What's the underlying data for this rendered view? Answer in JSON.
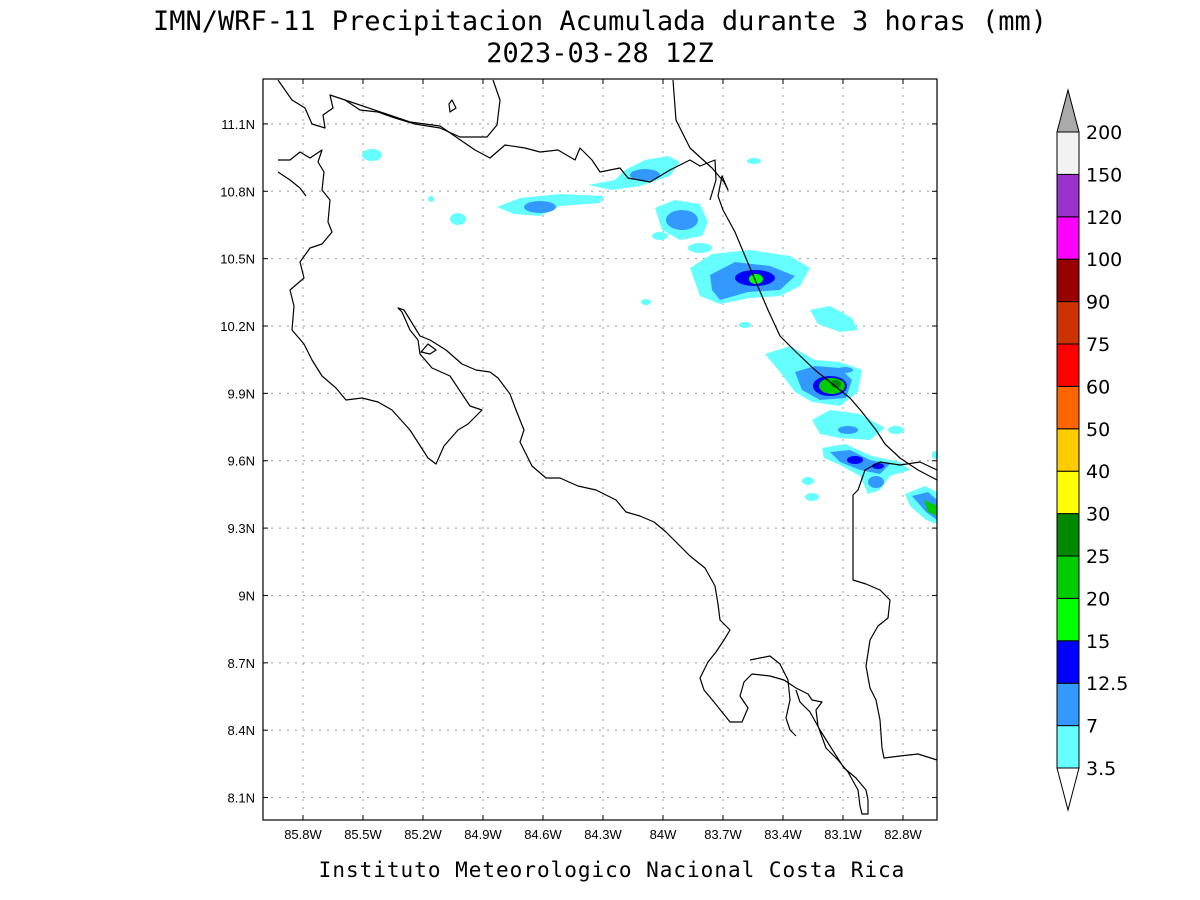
{
  "title": {
    "line1": "IMN/WRF-11 Precipitacion Acumulada durante 3 horas (mm)",
    "line2": "2023-03-28 12Z"
  },
  "credit": "Instituto Meteorologico Nacional Costa Rica",
  "map": {
    "lon_range": [
      -86.0,
      -82.63
    ],
    "lat_range": [
      8.0,
      11.3
    ],
    "lon_ticks": [
      {
        "value": -85.8,
        "label": "85.8W"
      },
      {
        "value": -85.5,
        "label": "85.5W"
      },
      {
        "value": -85.2,
        "label": "85.2W"
      },
      {
        "value": -84.9,
        "label": "84.9W"
      },
      {
        "value": -84.6,
        "label": "84.6W"
      },
      {
        "value": -84.3,
        "label": "84.3W"
      },
      {
        "value": -84.0,
        "label": "84W"
      },
      {
        "value": -83.7,
        "label": "83.7W"
      },
      {
        "value": -83.4,
        "label": "83.4W"
      },
      {
        "value": -83.1,
        "label": "83.1W"
      },
      {
        "value": -82.8,
        "label": "82.8W"
      }
    ],
    "lat_ticks": [
      {
        "value": 11.1,
        "label": "11.1N"
      },
      {
        "value": 10.8,
        "label": "10.8N"
      },
      {
        "value": 10.5,
        "label": "10.5N"
      },
      {
        "value": 10.2,
        "label": "10.2N"
      },
      {
        "value": 9.9,
        "label": "9.9N"
      },
      {
        "value": 9.6,
        "label": "9.6N"
      },
      {
        "value": 9.3,
        "label": "9.3N"
      },
      {
        "value": 9.0,
        "label": "9N"
      },
      {
        "value": 8.7,
        "label": "8.7N"
      },
      {
        "value": 8.4,
        "label": "8.4N"
      },
      {
        "value": 8.1,
        "label": "8.1N"
      }
    ],
    "grid": true
  },
  "colorbar": {
    "units": "mm",
    "levels": [
      "3.5",
      "7",
      "12.5",
      "15",
      "20",
      "25",
      "30",
      "40",
      "50",
      "60",
      "75",
      "90",
      "100",
      "120",
      "150",
      "200"
    ],
    "colors": [
      "#66ffff",
      "#3399ff",
      "#0000ff",
      "#00ff00",
      "#00cc00",
      "#008800",
      "#ffff00",
      "#ffcc00",
      "#ff6600",
      "#ff0000",
      "#cc3300",
      "#990000",
      "#ff00ff",
      "#9933cc",
      "#f2f2f2"
    ],
    "under_color": "#ffffff",
    "over_color": "#aaaaaa"
  },
  "precip_cells": [
    {
      "lon": -85.55,
      "lat": 10.98,
      "level": "3.5"
    },
    {
      "lon": -85.04,
      "lat": 10.66,
      "level": "3.5"
    },
    {
      "lon": -84.5,
      "lat": 10.75,
      "level": "7"
    },
    {
      "lon": -84.06,
      "lat": 10.91,
      "level": "3.5"
    },
    {
      "lon": -83.97,
      "lat": 10.95,
      "level": "7"
    },
    {
      "lon": -83.49,
      "lat": 10.96,
      "level": "3.5"
    },
    {
      "lon": -83.66,
      "lat": 10.7,
      "level": "7"
    },
    {
      "lon": -83.72,
      "lat": 10.55,
      "level": "3.5"
    },
    {
      "lon": -83.46,
      "lat": 10.42,
      "level": "15"
    },
    {
      "lon": -83.66,
      "lat": 10.32,
      "level": "7"
    },
    {
      "lon": -83.2,
      "lat": 10.26,
      "level": "3.5"
    },
    {
      "lon": -82.97,
      "lat": 10.21,
      "level": "3.5"
    },
    {
      "lon": -83.32,
      "lat": 10.07,
      "level": "7"
    },
    {
      "lon": -82.97,
      "lat": 9.93,
      "level": "25"
    },
    {
      "lon": -83.12,
      "lat": 9.85,
      "level": "7"
    },
    {
      "lon": -82.93,
      "lat": 9.72,
      "level": "12.5"
    },
    {
      "lon": -82.82,
      "lat": 9.58,
      "level": "12.5"
    },
    {
      "lon": -82.64,
      "lat": 9.39,
      "level": "20"
    },
    {
      "lon": -83.05,
      "lat": 9.49,
      "level": "3.5"
    },
    {
      "lon": -82.73,
      "lat": 9.7,
      "level": "3.5"
    }
  ]
}
